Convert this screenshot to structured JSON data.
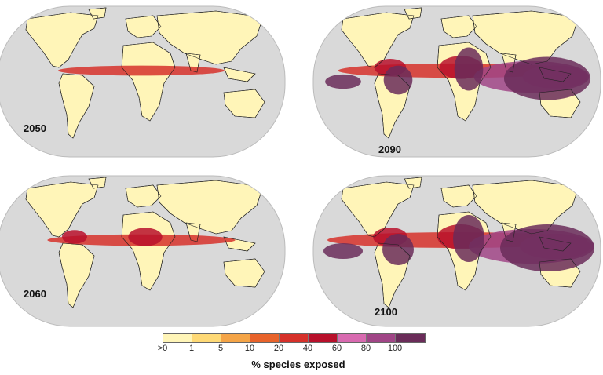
{
  "panels": [
    {
      "year": "2050",
      "intensity": 0.35
    },
    {
      "year": "2090",
      "intensity": 0.85
    },
    {
      "year": "2060",
      "intensity": 0.5
    },
    {
      "year": "2100",
      "intensity": 1.0
    }
  ],
  "legend": {
    "title": "% species exposed",
    "ticks": [
      ">0",
      "1",
      "5",
      "10",
      "20",
      "40",
      "60",
      "80",
      "100"
    ],
    "colors": [
      "#fff5b8",
      "#fed976",
      "#f4a447",
      "#e8632b",
      "#d6312a",
      "#b8102b",
      "#d86ab0",
      "#a04586",
      "#6a2c59"
    ]
  },
  "colors": {
    "ocean": "#d9d9d9",
    "land": "#fff5b8",
    "border": "#222222"
  }
}
